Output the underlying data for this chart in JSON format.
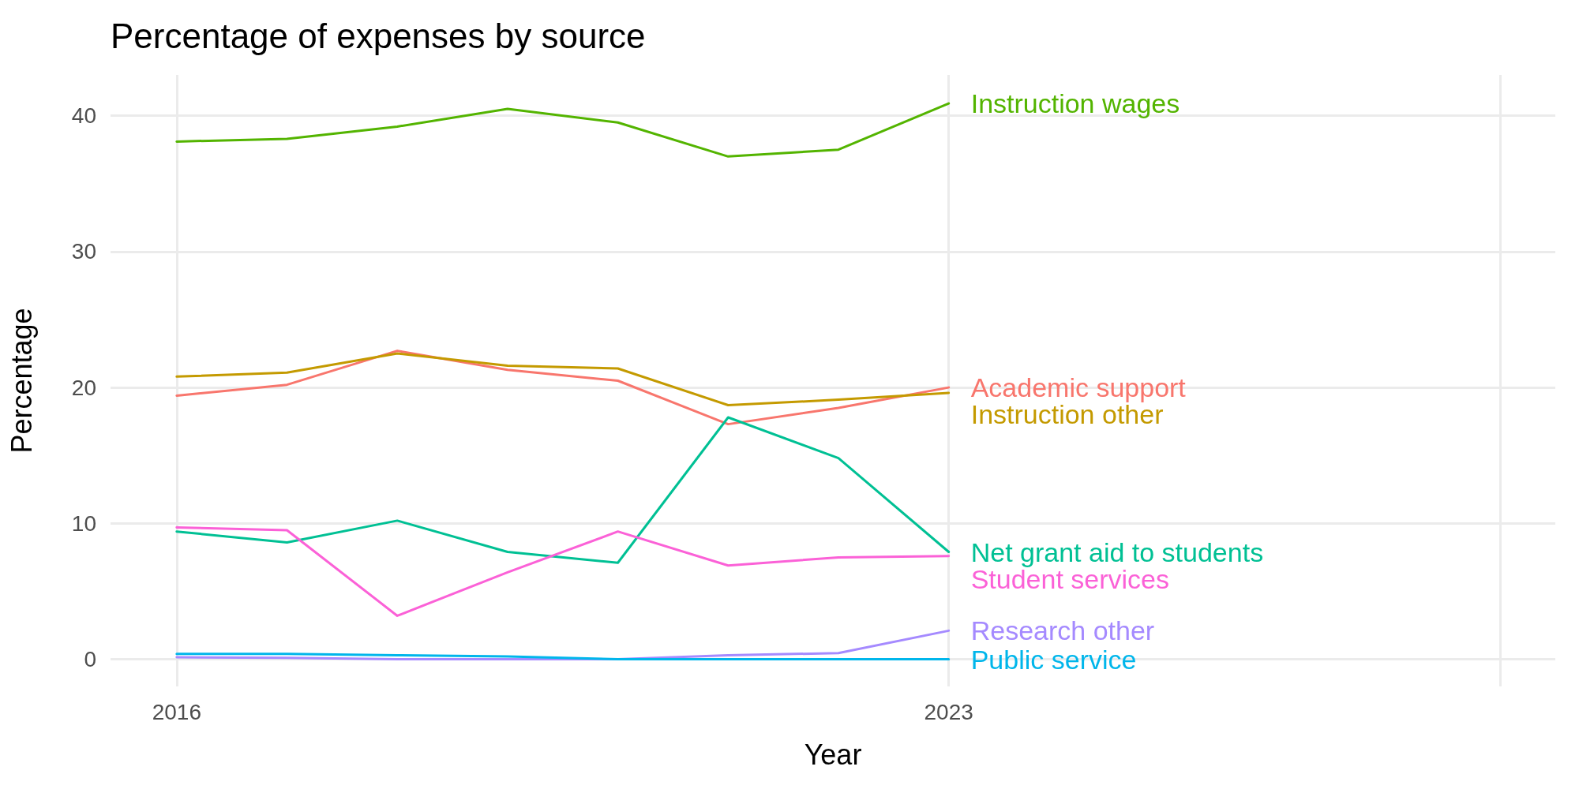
{
  "chart_data": {
    "type": "line",
    "title": "Percentage of expenses by source",
    "xlabel": "Year",
    "ylabel": "Percentage",
    "x": [
      2016,
      2017,
      2018,
      2019,
      2020,
      2021,
      2022,
      2023
    ],
    "series": [
      {
        "name": "Instruction wages",
        "color": "#53b400",
        "values": [
          38.1,
          38.3,
          39.2,
          40.5,
          39.5,
          37.0,
          37.5,
          40.9
        ]
      },
      {
        "name": "Academic support",
        "color": "#f8766d",
        "values": [
          19.4,
          20.2,
          22.7,
          21.3,
          20.5,
          17.3,
          18.5,
          20.0
        ]
      },
      {
        "name": "Instruction other",
        "color": "#c49a00",
        "values": [
          20.8,
          21.1,
          22.5,
          21.6,
          21.4,
          18.7,
          19.1,
          19.6
        ]
      },
      {
        "name": "Net grant aid to students",
        "color": "#00c094",
        "values": [
          9.4,
          8.6,
          10.2,
          7.9,
          7.1,
          17.8,
          14.8,
          7.9
        ]
      },
      {
        "name": "Student services",
        "color": "#fb61d7",
        "values": [
          9.7,
          9.5,
          3.2,
          6.4,
          9.4,
          6.9,
          7.5,
          7.6
        ]
      },
      {
        "name": "Research other",
        "color": "#a58aff",
        "values": [
          0.15,
          0.1,
          0,
          0,
          0,
          0.3,
          0.45,
          2.1
        ]
      },
      {
        "name": "Public service",
        "color": "#00b6eb",
        "values": [
          0.4,
          0.4,
          0.3,
          0.2,
          0,
          0,
          0,
          0
        ]
      }
    ],
    "xlim": [
      2015.4,
      2028.5
    ],
    "xticks": [
      2016,
      2023,
      {
        "value": 2028,
        "label": null
      }
    ],
    "ylim": [
      -2,
      43
    ],
    "yticks": [
      0,
      10,
      20,
      30,
      40
    ],
    "grid": true,
    "legend": false,
    "marker": "none",
    "line_style": "solid"
  }
}
